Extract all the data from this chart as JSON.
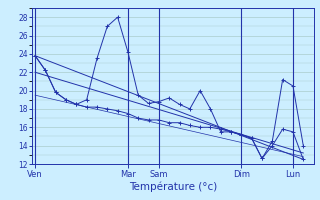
{
  "background_color": "#cceeff",
  "grid_color": "#aacccc",
  "line_color": "#2233aa",
  "title": "Température (°c)",
  "ylim": [
    12,
    29
  ],
  "yticks": [
    12,
    14,
    16,
    18,
    20,
    22,
    24,
    26,
    28
  ],
  "x_tick_labels": [
    "Ven",
    "Mar",
    "Sam",
    "Dim",
    "Lun"
  ],
  "x_tick_positions": [
    0,
    9,
    12,
    20,
    25
  ],
  "xlim": [
    -0.3,
    27
  ],
  "n_points": 27,
  "main_x": [
    0,
    1,
    2,
    3,
    4,
    5,
    6,
    7,
    8,
    9,
    10,
    11,
    12,
    13,
    14,
    15,
    16,
    17,
    18,
    19,
    20,
    21,
    22,
    23,
    24,
    25,
    26
  ],
  "main_y": [
    23.8,
    22.2,
    19.8,
    19.0,
    18.5,
    19.0,
    23.5,
    27.0,
    28.0,
    24.2,
    19.5,
    18.6,
    18.8,
    19.2,
    18.5,
    18.0,
    20.0,
    18.0,
    15.5,
    15.5,
    15.2,
    14.8,
    12.6,
    14.5,
    21.2,
    20.5,
    14.0
  ],
  "lower_x": [
    0,
    1,
    2,
    3,
    4,
    5,
    6,
    7,
    8,
    9,
    10,
    11,
    12,
    13,
    14,
    15,
    16,
    17,
    18,
    19,
    20,
    21,
    22,
    23,
    24,
    25,
    26
  ],
  "lower_y": [
    23.8,
    22.2,
    19.8,
    19.0,
    18.5,
    18.2,
    18.2,
    18.0,
    17.8,
    17.5,
    17.0,
    16.8,
    16.8,
    16.5,
    16.5,
    16.2,
    16.0,
    16.0,
    15.8,
    15.5,
    15.2,
    14.8,
    12.6,
    14.0,
    15.8,
    15.5,
    12.5
  ],
  "trend1_x": [
    0,
    26
  ],
  "trend1_y": [
    23.8,
    12.5
  ],
  "trend2_x": [
    0,
    26
  ],
  "trend2_y": [
    22.0,
    13.2
  ],
  "trend3_x": [
    0,
    26
  ],
  "trend3_y": [
    19.5,
    12.8
  ]
}
